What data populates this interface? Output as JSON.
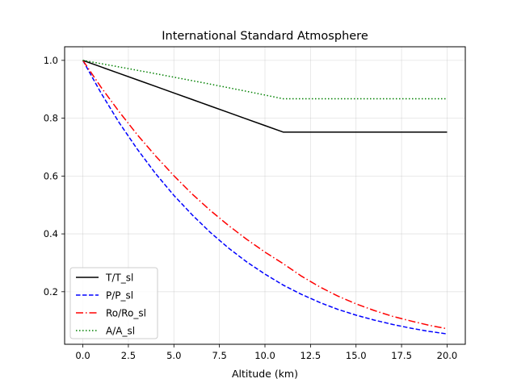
{
  "chart_data": {
    "type": "line",
    "title": "International Standard Atmosphere",
    "xlabel": "Altitude (km)",
    "ylabel": "",
    "xlim": [
      -1.0,
      21.0
    ],
    "ylim": [
      0.0183,
      1.047
    ],
    "xticks": [
      0.0,
      2.5,
      5.0,
      7.5,
      10.0,
      12.5,
      15.0,
      17.5,
      20.0
    ],
    "xtick_labels": [
      "0.0",
      "2.5",
      "5.0",
      "7.5",
      "10.0",
      "12.5",
      "15.0",
      "17.5",
      "20.0"
    ],
    "yticks": [
      0.2,
      0.4,
      0.6,
      0.8,
      1.0
    ],
    "ytick_labels": [
      "0.2",
      "0.4",
      "0.6",
      "0.8",
      "1.0"
    ],
    "grid": true,
    "legend_position": "lower-left",
    "x": [
      0,
      1,
      2,
      3,
      4,
      5,
      6,
      7,
      8,
      9,
      10,
      11,
      12,
      13,
      14,
      15,
      16,
      17,
      18,
      19,
      20
    ],
    "series": [
      {
        "name": "T/T_sl",
        "color": "#000000",
        "dash": "solid",
        "values": [
          1.0,
          0.9774,
          0.9549,
          0.9323,
          0.9098,
          0.8872,
          0.8647,
          0.8421,
          0.8196,
          0.797,
          0.7745,
          0.7519,
          0.7519,
          0.7519,
          0.7519,
          0.7519,
          0.7519,
          0.7519,
          0.7519,
          0.7519,
          0.7519
        ]
      },
      {
        "name": "P/P_sl",
        "color": "#0000ff",
        "dash": "dashed",
        "values": [
          1.0,
          0.887,
          0.784,
          0.692,
          0.608,
          0.533,
          0.466,
          0.405,
          0.351,
          0.303,
          0.261,
          0.223,
          0.191,
          0.163,
          0.139,
          0.119,
          0.102,
          0.087,
          0.074,
          0.063,
          0.054
        ]
      },
      {
        "name": "Ro/Ro_sl",
        "color": "#ff0000",
        "dash": "dashdot",
        "values": [
          1.0,
          0.907,
          0.822,
          0.742,
          0.669,
          0.601,
          0.538,
          0.481,
          0.429,
          0.381,
          0.337,
          0.297,
          0.254,
          0.217,
          0.185,
          0.158,
          0.135,
          0.115,
          0.099,
          0.084,
          0.072
        ]
      },
      {
        "name": "A/A_sl",
        "color": "#008000",
        "dash": "dotted",
        "values": [
          1.0,
          0.9886,
          0.9772,
          0.9656,
          0.9538,
          0.9419,
          0.9299,
          0.9177,
          0.9053,
          0.8928,
          0.8801,
          0.8671,
          0.8671,
          0.8671,
          0.8671,
          0.8671,
          0.8671,
          0.8671,
          0.8671,
          0.8671,
          0.8671
        ]
      }
    ]
  }
}
